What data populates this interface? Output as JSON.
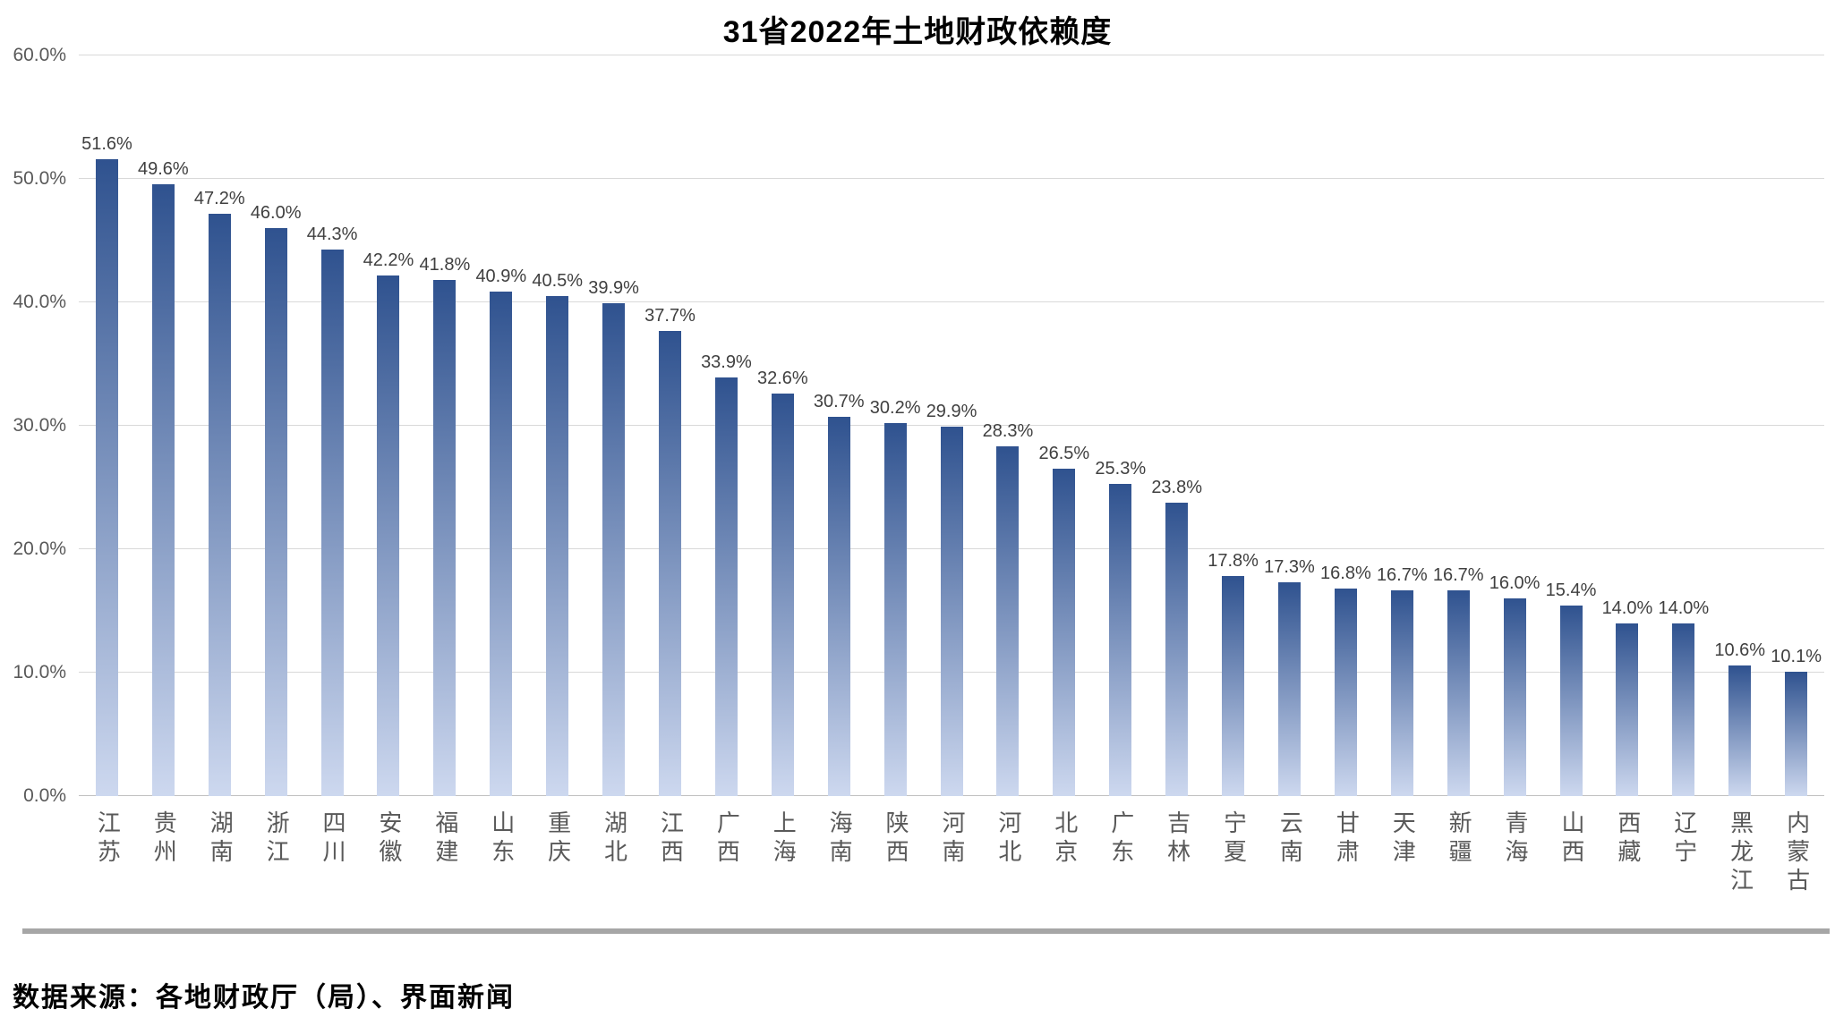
{
  "source": "数据来源：各地财政厅（局）、界面新闻",
  "colors": {
    "bar_gradient_top": "#2F528F",
    "bar_gradient_bottom": "#CDD8EF",
    "gridline": "#D9D9D9",
    "axis_line": "#C0C0C0",
    "tick_label": "#595959",
    "value_label": "#404040",
    "x_label": "#595959",
    "divider": "#A6A6A6",
    "title": "#000000"
  },
  "chart_data": {
    "type": "bar",
    "title": "31省2022年土地财政依赖度",
    "categories": [
      "江苏",
      "贵州",
      "湖南",
      "浙江",
      "四川",
      "安徽",
      "福建",
      "山东",
      "重庆",
      "湖北",
      "江西",
      "广西",
      "上海",
      "海南",
      "陕西",
      "河南",
      "河北",
      "北京",
      "广东",
      "吉林",
      "宁夏",
      "云南",
      "甘肃",
      "天津",
      "新疆",
      "青海",
      "山西",
      "西藏",
      "辽宁",
      "黑龙江",
      "内蒙古"
    ],
    "values": [
      51.6,
      49.6,
      47.2,
      46.0,
      44.3,
      42.2,
      41.8,
      40.9,
      40.5,
      39.9,
      37.7,
      33.9,
      32.6,
      30.7,
      30.2,
      29.9,
      28.3,
      26.5,
      25.3,
      23.8,
      17.8,
      17.3,
      16.8,
      16.7,
      16.7,
      16.0,
      15.4,
      14.0,
      14.0,
      10.6,
      10.1
    ],
    "value_labels": [
      "51.6%",
      "49.6%",
      "47.2%",
      "46.0%",
      "44.3%",
      "42.2%",
      "41.8%",
      "40.9%",
      "40.5%",
      "39.9%",
      "37.7%",
      "33.9%",
      "32.6%",
      "30.7%",
      "30.2%",
      "29.9%",
      "28.3%",
      "26.5%",
      "25.3%",
      "23.8%",
      "17.8%",
      "17.3%",
      "16.8%",
      "16.7%",
      "16.7%",
      "16.0%",
      "15.4%",
      "14.0%",
      "14.0%",
      "10.6%",
      "10.1%"
    ],
    "xlabel": "",
    "ylabel": "",
    "ylim": [
      0,
      60
    ],
    "y_ticks": [
      0,
      10,
      20,
      30,
      40,
      50,
      60
    ],
    "y_tick_labels": [
      "0.0%",
      "10.0%",
      "20.0%",
      "30.0%",
      "40.0%",
      "50.0%",
      "60.0%"
    ],
    "grid": true,
    "legend": false
  }
}
